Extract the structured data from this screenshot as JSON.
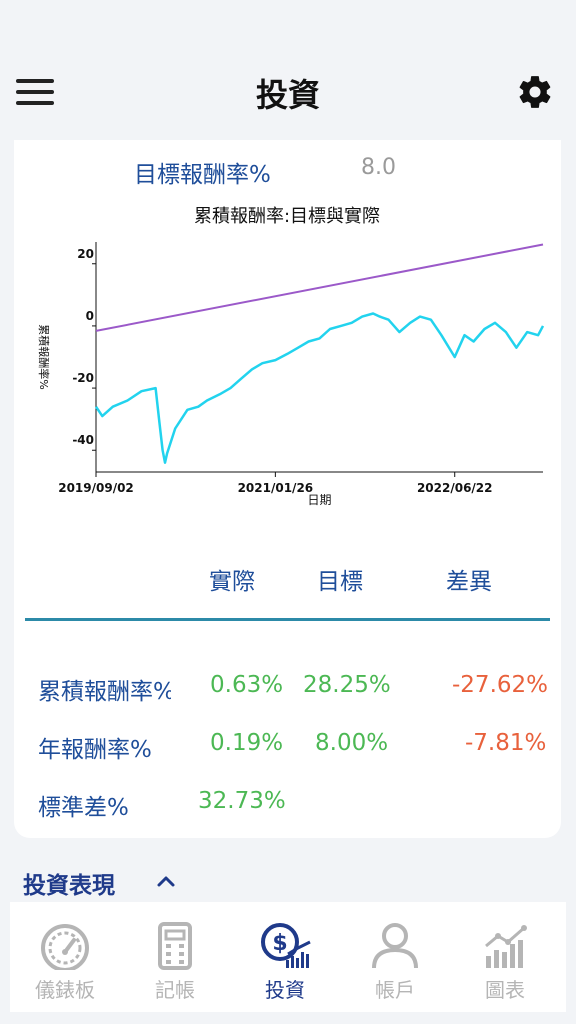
{
  "header": {
    "title": "投資",
    "menu_icon": "hamburger-menu-icon",
    "settings_icon": "gear-icon"
  },
  "target": {
    "label": "目標報酬率%",
    "value": "8.0"
  },
  "chart_data": {
    "type": "line",
    "title": "累積報酬率:目標與實際",
    "xlabel": "日期",
    "ylabel": "累積報酬率%",
    "x_ticks": [
      "2019/09/02",
      "2021/01/26",
      "2022/06/22"
    ],
    "y_ticks": [
      20,
      0,
      -20,
      -40
    ],
    "ylim": [
      -47,
      27
    ],
    "x_range": [
      "2019/09/02",
      "2023/03/01"
    ],
    "series": [
      {
        "key": "target",
        "color": "#9b59c9",
        "x": [
          "2019/09/02",
          "2023/03/01"
        ],
        "y": [
          -1.6,
          26.2
        ]
      },
      {
        "key": "actual",
        "color": "#22d3ee",
        "x": [
          "2019/09/02",
          "2019/09/20",
          "2019/10/20",
          "2019/12/01",
          "2020/01/10",
          "2020/02/19",
          "2020/03/01",
          "2020/03/10",
          "2020/03/17",
          "2020/03/23",
          "2020/04/15",
          "2020/05/20",
          "2020/06/20",
          "2020/07/15",
          "2020/08/20",
          "2020/09/20",
          "2020/10/20",
          "2020/11/20",
          "2020/12/20",
          "2021/01/26",
          "2021/03/01",
          "2021/04/01",
          "2021/05/01",
          "2021/06/01",
          "2021/07/01",
          "2021/08/01",
          "2021/09/01",
          "2021/10/01",
          "2021/11/01",
          "2021/11/20",
          "2021/12/15",
          "2022/01/15",
          "2022/02/15",
          "2022/03/15",
          "2022/04/15",
          "2022/05/15",
          "2022/06/22",
          "2022/07/20",
          "2022/08/15",
          "2022/09/15",
          "2022/10/15",
          "2022/11/15",
          "2022/12/15",
          "2023/01/15",
          "2023/02/15",
          "2023/03/01"
        ],
        "y": [
          -26,
          -29,
          -26,
          -24,
          -21,
          -20,
          -31,
          -40,
          -44,
          -41,
          -33,
          -27,
          -26,
          -24,
          -22,
          -20,
          -17,
          -14,
          -12,
          -11,
          -9,
          -7,
          -5,
          -4,
          -1,
          0,
          1,
          3,
          4,
          3,
          2,
          -2,
          1,
          3,
          2,
          -3,
          -10,
          -3,
          -5,
          -1,
          1,
          -2,
          -7,
          -2,
          -3,
          0
        ]
      }
    ]
  },
  "table": {
    "headers": [
      "實際",
      "目標",
      "差異"
    ],
    "rows": [
      {
        "label": "累積報酬率%",
        "actual": "0.63%",
        "target": "28.25%",
        "diff": "-27.62%"
      },
      {
        "label": "年報酬率%",
        "actual": "0.19%",
        "target": "8.00%",
        "diff": "-7.81%"
      },
      {
        "label": "標準差%",
        "actual": "32.73%",
        "target": "",
        "diff": ""
      }
    ]
  },
  "section": {
    "title": "投資表現",
    "chevron": "chevron-up-icon"
  },
  "colors": {
    "brand": "#1f3a8a",
    "positive": "#4cb854",
    "negative": "#e8613c",
    "inactive": "#b5b5b5"
  },
  "nav": [
    {
      "label": "儀錶板",
      "icon": "dashboard-gauge-icon",
      "active": false
    },
    {
      "label": "記帳",
      "icon": "calculator-icon",
      "active": false
    },
    {
      "label": "投資",
      "icon": "investment-dollar-icon",
      "active": true
    },
    {
      "label": "帳戶",
      "icon": "user-account-icon",
      "active": false
    },
    {
      "label": "圖表",
      "icon": "bar-chart-icon",
      "active": false
    }
  ]
}
